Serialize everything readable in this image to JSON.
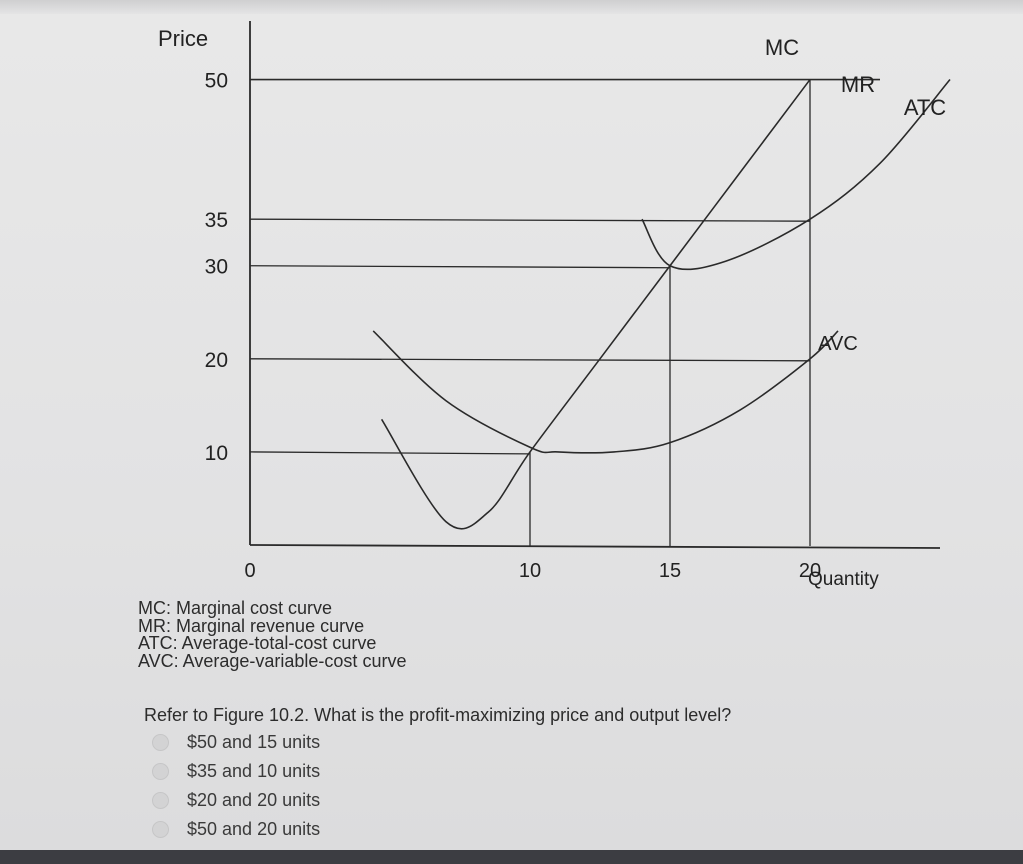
{
  "chart_data": {
    "type": "line",
    "xlabel": "Quantity",
    "ylabel": "Price",
    "xticks": [
      0,
      10,
      15,
      20
    ],
    "yticks": [
      10,
      20,
      30,
      35,
      50
    ],
    "xlim": [
      0,
      25
    ],
    "ylim": [
      0,
      55
    ],
    "series": [
      {
        "name": "MC",
        "x": [
          4.7,
          7.0,
          8.5,
          10.0,
          12.5,
          15.0,
          17.5,
          20.0
        ],
        "y": [
          13.5,
          2.5,
          3.5,
          10.0,
          20.0,
          30.0,
          40.0,
          50.0
        ]
      },
      {
        "name": "MR",
        "x": [
          0,
          22.5
        ],
        "y": [
          50,
          50
        ]
      },
      {
        "name": "ATC",
        "x": [
          14.0,
          15.0,
          17.0,
          20.0,
          22.5,
          25.0
        ],
        "y": [
          35.0,
          30.0,
          30.5,
          35.0,
          41.0,
          50.0
        ]
      },
      {
        "name": "AVC",
        "x": [
          4.4,
          7.0,
          10.0,
          11.0,
          13.0,
          15.0,
          17.5,
          20.0,
          21.0
        ],
        "y": [
          23.0,
          15.5,
          10.5,
          10.0,
          10.0,
          11.0,
          14.5,
          20.0,
          23.0
        ]
      }
    ],
    "reference_lines": [
      {
        "y": 35,
        "x_end": 20
      },
      {
        "y": 30,
        "x_end": 15
      },
      {
        "y": 20,
        "x_end": 20
      },
      {
        "y": 10,
        "x_end": 10
      },
      {
        "x": 10,
        "y_end": 10
      },
      {
        "x": 15,
        "y_end": 30
      },
      {
        "x": 20,
        "y_end": 50
      }
    ],
    "curve_labels": [
      "MC",
      "MR",
      "ATC",
      "AVC"
    ]
  },
  "legend": [
    "MC: Marginal cost curve",
    "MR: Marginal revenue curve",
    "ATC: Average-total-cost curve",
    "AVC: Average-variable-cost curve"
  ],
  "question": "Refer to Figure 10.2. What is the profit-maximizing price and output level?",
  "options": [
    "$50 and 15 units",
    "$35 and 10 units",
    "$20 and 20 units",
    "$50 and 20 units"
  ],
  "colors": {
    "line": "#2a2a2a",
    "text": "#222222",
    "background": "#e5e5e6"
  }
}
